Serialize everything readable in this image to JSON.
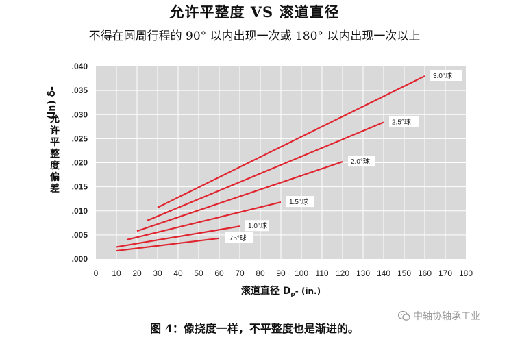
{
  "header": {
    "title": "允许平整度 VS 滚道直径",
    "subtitle": "不得在圆周行程的 90° 以内出现一次或 180° 以内出现一次以上"
  },
  "caption": "图 4：像挠度一样，不平整度也是渐进的。",
  "watermark": {
    "text": "中轴协轴承工业",
    "icon": "wechat-icon"
  },
  "colors": {
    "line": "#e0252f",
    "plot_bg": "#d9d9d9",
    "grid": "#ffffff"
  },
  "chart_data": {
    "type": "line",
    "xlabel_main": "滚道直径",
    "xlabel_symbol": "D",
    "xlabel_sub": "p",
    "xlabel_unit": "- (in.)",
    "ylabel_chars": [
      "允",
      "许",
      "平",
      "整",
      "度",
      "偏",
      "差"
    ],
    "ylabel_symbol": "δ",
    "ylabel_unit": "(in)",
    "xlim": [
      0,
      180
    ],
    "ylim": [
      0,
      0.04
    ],
    "x_ticks": [
      "0",
      "10",
      "20",
      "30",
      "40",
      "50",
      "60",
      "70",
      "80",
      "90",
      "100",
      "110",
      "120",
      "130",
      "140",
      "150",
      "160",
      "170",
      "180"
    ],
    "y_ticks": [
      ".000",
      ".005",
      ".010",
      ".015",
      ".020",
      ".025",
      ".030",
      ".035",
      ".040"
    ],
    "grid": true,
    "series": [
      {
        "name": "3.0°球",
        "x": [
          30,
          160
        ],
        "y": [
          0.0107,
          0.038
        ]
      },
      {
        "name": "2.5°球",
        "x": [
          25,
          140
        ],
        "y": [
          0.008,
          0.0284
        ]
      },
      {
        "name": "2.0°球",
        "x": [
          20,
          120
        ],
        "y": [
          0.0058,
          0.0202
        ]
      },
      {
        "name": "1.5°球",
        "x": [
          15,
          90
        ],
        "y": [
          0.004,
          0.0118
        ]
      },
      {
        "name": "1.0°球",
        "x": [
          10,
          70
        ],
        "y": [
          0.0025,
          0.0068
        ]
      },
      {
        "name": ".75°球",
        "x": [
          10,
          60
        ],
        "y": [
          0.0017,
          0.0043
        ]
      }
    ]
  }
}
